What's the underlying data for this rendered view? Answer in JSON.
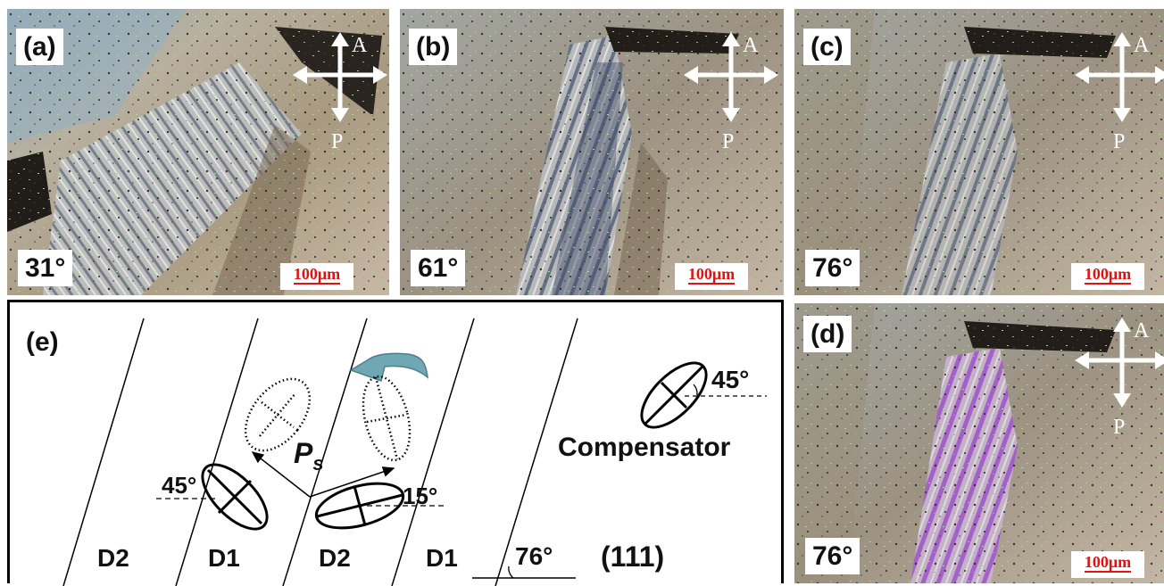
{
  "figure": {
    "panels": [
      {
        "id": "a",
        "label": "(a)",
        "angle": "31°",
        "scale_bar": "100μm",
        "analyzer": "A",
        "polarizer": "P"
      },
      {
        "id": "b",
        "label": "(b)",
        "angle": "61°",
        "scale_bar": "100μm",
        "analyzer": "A",
        "polarizer": "P"
      },
      {
        "id": "c",
        "label": "(c)",
        "angle": "76°",
        "scale_bar": "100μm",
        "analyzer": "A",
        "polarizer": "P"
      },
      {
        "id": "d",
        "label": "(d)",
        "angle": "76°",
        "scale_bar": "100μm",
        "analyzer": "A",
        "polarizer": "P"
      }
    ],
    "diagram": {
      "label": "(e)",
      "domains": [
        "D2",
        "D1",
        "D2",
        "D1"
      ],
      "polarization_label": "P",
      "polarization_subscript": "s",
      "angle_left": "45°",
      "angle_right": "15°",
      "compensator_label": "Compensator",
      "compensator_angle": "45°",
      "wall_angle": "76°",
      "plane": "(111)"
    }
  },
  "colors": {
    "scale_red": "#e01212",
    "stripe_purple": "#a45ad0",
    "arrow_teal": "#6fa8b4"
  }
}
